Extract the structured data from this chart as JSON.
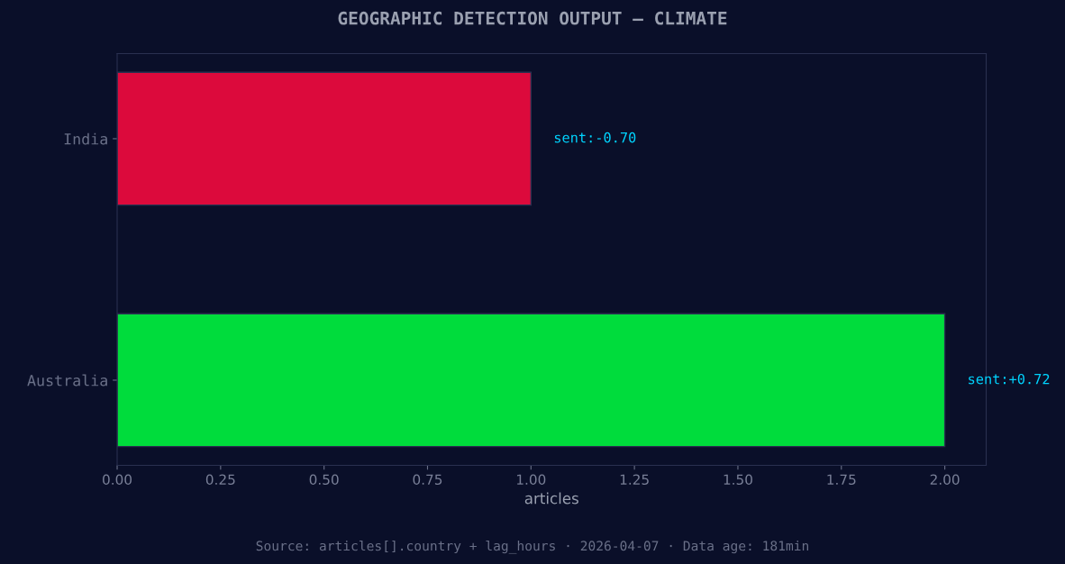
{
  "chart_data": {
    "type": "bar",
    "orientation": "horizontal",
    "title": "GEOGRAPHIC DETECTION OUTPUT — CLIMATE",
    "xlabel": "articles",
    "categories": [
      "India",
      "Australia"
    ],
    "values": [
      1,
      2
    ],
    "colors": [
      "#dc0a3c",
      "#00dc3c"
    ],
    "xlim": [
      0,
      2.1
    ],
    "xticks": [
      {
        "value": 0,
        "label": "0.00"
      },
      {
        "value": 0.25,
        "label": "0.25"
      },
      {
        "value": 0.5,
        "label": "0.50"
      },
      {
        "value": 0.75,
        "label": "0.75"
      },
      {
        "value": 1,
        "label": "1.00"
      },
      {
        "value": 1.25,
        "label": "1.25"
      },
      {
        "value": 1.5,
        "label": "1.50"
      },
      {
        "value": 1.75,
        "label": "1.75"
      },
      {
        "value": 2,
        "label": "2.00"
      }
    ],
    "grid": false,
    "legend": false,
    "annotations": [
      {
        "text": "sent:-0.70",
        "x": 1,
        "y": "India"
      },
      {
        "text": "sent:+0.72",
        "x": 2,
        "y": "Australia"
      },
      "Source: articles[].country + lag_hours · 2026-04-07 · Data age: 181min"
    ]
  }
}
